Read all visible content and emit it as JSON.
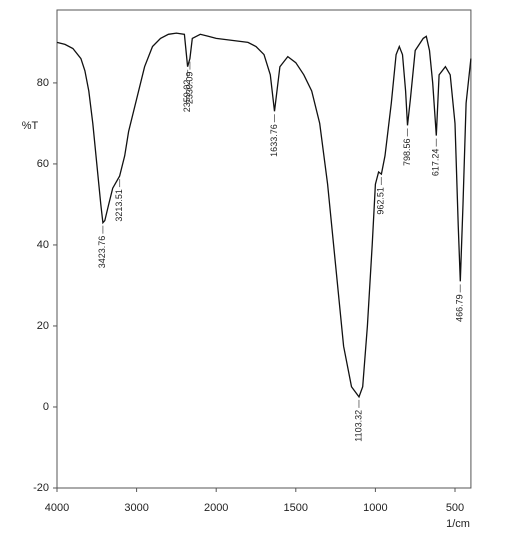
{
  "chart_data": {
    "type": "line",
    "y_label": "%T",
    "x_label": "1/cm",
    "color": "#111111",
    "xlim": [
      4000,
      400
    ],
    "ylim": [
      -20,
      98
    ],
    "xticks": [
      4000,
      3000,
      2000,
      1500,
      1000,
      500
    ],
    "yticks": [
      80,
      60,
      40,
      20,
      0,
      -20
    ],
    "x": [
      4000,
      3900,
      3800,
      3700,
      3650,
      3600,
      3550,
      3500,
      3450,
      3423.76,
      3400,
      3350,
      3300,
      3213.51,
      3150,
      3100,
      3000,
      2900,
      2800,
      2700,
      2600,
      2500,
      2400,
      2359.02,
      2330.09,
      2300,
      2200,
      2100,
      2000,
      1900,
      1800,
      1750,
      1700,
      1660,
      1633.76,
      1600,
      1550,
      1500,
      1450,
      1400,
      1350,
      1300,
      1250,
      1200,
      1150,
      1103.32,
      1080,
      1050,
      1020,
      1000,
      980,
      962.51,
      940,
      900,
      870,
      850,
      830,
      810,
      798.56,
      780,
      750,
      700,
      680,
      660,
      640,
      617.24,
      600,
      560,
      530,
      500,
      480,
      466.79,
      450,
      430,
      400
    ],
    "values": [
      90,
      89.5,
      88.5,
      86,
      83,
      78,
      70,
      60,
      50,
      45.5,
      46,
      50,
      54,
      57,
      62,
      68,
      76,
      84,
      89,
      91,
      92,
      92.3,
      92,
      84,
      86,
      91,
      92,
      91.5,
      91,
      90.5,
      90,
      89,
      87,
      82,
      73,
      84,
      86.5,
      85,
      82,
      78,
      70,
      55,
      35,
      15,
      5,
      2.5,
      5,
      20,
      40,
      55,
      58,
      57.5,
      62,
      75,
      87,
      89,
      87,
      78,
      69.5,
      76,
      88,
      91,
      91.5,
      88,
      80,
      67,
      82,
      84,
      82,
      70,
      45,
      31,
      50,
      75,
      86
    ],
    "peak_labels": [
      3423.76,
      3213.51,
      2359.02,
      2330.09,
      1633.76,
      1103.32,
      962.51,
      798.56,
      617.24,
      466.79
    ]
  }
}
